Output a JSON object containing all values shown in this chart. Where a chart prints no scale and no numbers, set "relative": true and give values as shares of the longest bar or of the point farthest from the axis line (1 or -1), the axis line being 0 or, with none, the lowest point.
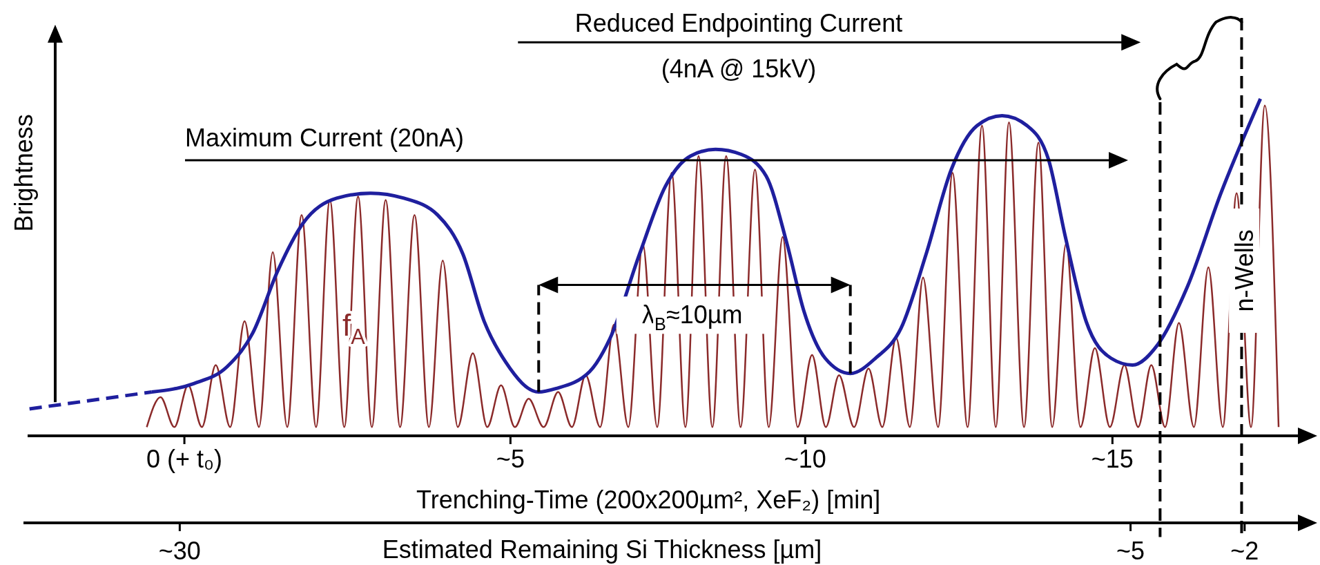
{
  "chart_data": {
    "type": "line",
    "relative": true,
    "xlim": [
      -2.5,
      18
    ],
    "xticks": [
      {
        "value": 0,
        "label": "0 (+ t₀)"
      },
      {
        "value": 5.2,
        "label": "~5"
      },
      {
        "value": 9.9,
        "label": "~10"
      },
      {
        "value": 14.8,
        "label": "~15"
      }
    ],
    "x2lim": [
      34.0,
      0.2
    ],
    "x2ticks": [
      {
        "value": 30,
        "label": "~30"
      },
      {
        "value": 5,
        "label": "~5"
      },
      {
        "value": 2,
        "label": "~2"
      }
    ],
    "xlabel": "Trenching-Time (200x200µm², XeF₂) [min]",
    "x2label": "Estimated Remaining Si Thickness [µm]",
    "ylabel": "Brightness",
    "annotations": [
      "Maximum Current (20nA)",
      "Reduced Endpointing Current",
      "(4nA @ 15kV)",
      "λ$_{B}$≈10µm",
      "n-Wells"
    ],
    "ref_lines": [
      {
        "axis": "x",
        "value": 5.65,
        "color": "#000000",
        "line_style": "dashed"
      },
      {
        "axis": "x",
        "value": 10.62,
        "color": "#000000",
        "line_style": "dashed"
      },
      {
        "axis": "x",
        "value": 15.56,
        "color": "#000000",
        "line_style": "dashed"
      },
      {
        "axis": "x",
        "value": 16.86,
        "color": "#000000",
        "line_style": "dashed"
      }
    ],
    "series": [
      {
        "name": "f$_{A}$",
        "color": "#8b2a2a",
        "line_style": "solid",
        "x": [
          -0.6,
          -0.38,
          -0.16,
          0.06,
          0.28,
          0.5,
          0.73,
          0.96,
          1.19,
          1.41,
          1.64,
          1.87,
          2.1,
          2.32,
          2.55,
          2.77,
          2.99,
          3.21,
          3.44,
          3.67,
          3.9,
          4.12,
          4.36,
          4.6,
          4.83,
          5.05,
          5.27,
          5.49,
          5.73,
          5.96,
          6.18,
          6.4,
          6.63,
          6.85,
          7.08,
          7.31,
          7.54,
          7.77,
          7.99,
          8.2,
          8.42,
          8.64,
          8.87,
          9.1,
          9.32,
          9.54,
          9.78,
          10.01,
          10.23,
          10.44,
          10.68,
          10.91,
          11.13,
          11.35,
          11.57,
          11.78,
          12.02,
          12.25,
          12.49,
          12.72,
          12.94,
          13.15,
          13.39,
          13.62,
          13.84,
          14.06,
          14.29,
          14.52,
          14.76,
          14.99,
          15.21,
          15.42,
          15.64,
          15.86,
          16.1,
          16.33,
          16.56,
          16.78,
          17.01,
          17.23,
          17.45
        ],
        "values": [
          0.026,
          0.115,
          0.026,
          0.15,
          0.026,
          0.21,
          0.026,
          0.34,
          0.026,
          0.545,
          0.026,
          0.655,
          0.026,
          0.7,
          0.026,
          0.71,
          0.026,
          0.7,
          0.026,
          0.655,
          0.026,
          0.52,
          0.026,
          0.245,
          0.026,
          0.15,
          0.026,
          0.11,
          0.026,
          0.13,
          0.026,
          0.18,
          0.026,
          0.33,
          0.026,
          0.57,
          0.026,
          0.78,
          0.026,
          0.83,
          0.026,
          0.83,
          0.026,
          0.79,
          0.026,
          0.59,
          0.026,
          0.24,
          0.026,
          0.18,
          0.026,
          0.2,
          0.026,
          0.29,
          0.026,
          0.47,
          0.026,
          0.78,
          0.026,
          0.92,
          0.026,
          0.93,
          0.026,
          0.87,
          0.026,
          0.57,
          0.026,
          0.26,
          0.026,
          0.21,
          0.026,
          0.21,
          0.026,
          0.335,
          0.026,
          0.5,
          0.026,
          0.72,
          0.026,
          0.98,
          0.026
        ]
      },
      {
        "color": "#1f1f9e",
        "line_style": "dashed",
        "x": [
          -2.47,
          -0.52
        ],
        "values": [
          0.08,
          0.13
        ]
      },
      {
        "color": "#1f1f9e",
        "line_style": "solid",
        "x": [
          -0.52,
          0.15,
          0.68,
          1.09,
          1.49,
          1.89,
          2.43,
          2.97,
          3.5,
          4.04,
          4.44,
          4.78,
          5.12,
          5.65,
          5.92,
          6.46,
          6.79,
          7.26,
          7.67,
          8.07,
          8.47,
          8.88,
          9.28,
          9.61,
          9.88,
          10.22,
          10.62,
          11.02,
          11.43,
          11.83,
          12.23,
          12.64,
          13.04,
          13.44,
          13.78,
          14.05,
          14.38,
          14.78,
          15.12,
          15.52,
          15.99,
          16.53,
          17.16
        ],
        "values": [
          0.13,
          0.155,
          0.205,
          0.305,
          0.49,
          0.63,
          0.705,
          0.72,
          0.705,
          0.655,
          0.54,
          0.34,
          0.22,
          0.13,
          0.14,
          0.19,
          0.29,
          0.54,
          0.74,
          0.83,
          0.85,
          0.835,
          0.77,
          0.57,
          0.37,
          0.23,
          0.185,
          0.23,
          0.32,
          0.54,
          0.79,
          0.92,
          0.95,
          0.92,
          0.82,
          0.59,
          0.34,
          0.23,
          0.21,
          0.27,
          0.44,
          0.72,
          1.0
        ]
      }
    ]
  }
}
